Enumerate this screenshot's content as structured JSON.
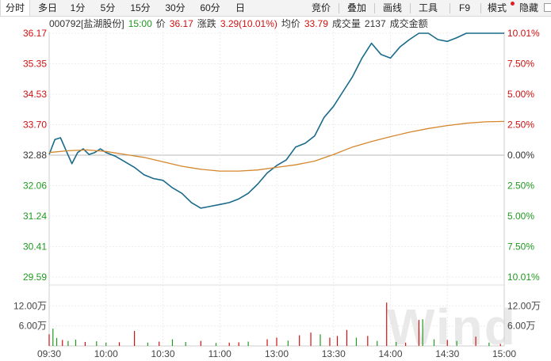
{
  "toolbar": {
    "tabs": [
      "分时",
      "多日",
      "1分",
      "5分",
      "15分",
      "30分",
      "60分",
      "日"
    ],
    "right_items": [
      "竞价",
      "叠加",
      "画线",
      "工具",
      "F9",
      "模式",
      "隐藏"
    ]
  },
  "header": {
    "code_name": "000792[盐湖股份]",
    "time": "15:00",
    "price_label": "价",
    "price": "36.17",
    "change_label": "涨跌",
    "change": "3.29(10.01%)",
    "avg_label": "均价",
    "avg": "33.79",
    "volume_label": "成交量",
    "volume": "2137",
    "amount_label": "成交金额"
  },
  "watermark": "Wind",
  "colors": {
    "up": "#d01010",
    "down": "#1f9a1f",
    "neutral": "#333333",
    "price_line": "#1a6b8a",
    "avg_line": "#d4862c"
  },
  "chart_data": {
    "type": "line",
    "prev_close": 32.88,
    "x_ticks": [
      "09:30",
      "10:00",
      "10:30",
      "11:00",
      "13:00",
      "13:30",
      "14:00",
      "14:30",
      "15:00"
    ],
    "y_left_ticks": [
      "36.17",
      "35.35",
      "34.53",
      "33.70",
      "32.88",
      "32.06",
      "31.24",
      "30.41",
      "29.59"
    ],
    "y_right_ticks": [
      "10.01%",
      "7.50%",
      "5.00%",
      "2.50%",
      "0.00%",
      "2.50%",
      "5.00%",
      "7.50%",
      "10.01%"
    ],
    "ylim": [
      29.59,
      36.17
    ],
    "volume_ticks": [
      "12.00万",
      "6.00万"
    ],
    "volume_ylim": [
      0,
      14
    ],
    "series": [
      {
        "key": "price",
        "x": [
          0,
          3,
          6,
          9,
          12,
          15,
          18,
          21,
          24,
          27,
          30,
          35,
          40,
          45,
          50,
          55,
          60,
          65,
          70,
          75,
          80,
          85,
          90,
          95,
          100,
          105,
          110,
          115,
          120,
          125,
          130,
          135,
          140,
          145,
          150,
          155,
          160,
          165,
          170,
          175,
          180,
          185,
          190,
          195,
          200,
          205,
          210,
          215,
          220,
          225,
          230,
          235,
          240
        ],
        "values": [
          32.9,
          33.3,
          33.35,
          33.0,
          32.65,
          32.95,
          33.05,
          32.9,
          32.95,
          33.05,
          32.95,
          32.85,
          32.7,
          32.55,
          32.35,
          32.25,
          32.2,
          32.0,
          31.85,
          31.6,
          31.45,
          31.5,
          31.55,
          31.6,
          31.7,
          31.85,
          32.1,
          32.4,
          32.6,
          32.75,
          33.1,
          33.2,
          33.4,
          33.9,
          34.2,
          34.6,
          35.0,
          35.5,
          35.9,
          35.6,
          35.5,
          35.8,
          36.0,
          36.17,
          36.17,
          36.0,
          35.95,
          36.05,
          36.17,
          36.17,
          36.17,
          36.17,
          36.17
        ]
      },
      {
        "key": "average",
        "x": [
          0,
          10,
          20,
          30,
          40,
          50,
          60,
          70,
          80,
          90,
          100,
          110,
          120,
          130,
          140,
          150,
          160,
          170,
          180,
          190,
          200,
          210,
          220,
          230,
          240
        ],
        "values": [
          32.95,
          33.0,
          33.02,
          32.98,
          32.9,
          32.82,
          32.7,
          32.58,
          32.5,
          32.45,
          32.45,
          32.48,
          32.55,
          32.62,
          32.72,
          32.9,
          33.1,
          33.25,
          33.38,
          33.5,
          33.6,
          33.68,
          33.74,
          33.78,
          33.79
        ]
      }
    ],
    "volume": [
      {
        "x": 0,
        "v": 3.5,
        "dir": "up"
      },
      {
        "x": 2,
        "v": 5.2,
        "dir": "down"
      },
      {
        "x": 4,
        "v": 2.4,
        "dir": "down"
      },
      {
        "x": 7,
        "v": 1.8,
        "dir": "up"
      },
      {
        "x": 10,
        "v": 1.5,
        "dir": "down"
      },
      {
        "x": 14,
        "v": 1.9,
        "dir": "down"
      },
      {
        "x": 19,
        "v": 1.2,
        "dir": "up"
      },
      {
        "x": 25,
        "v": 1.4,
        "dir": "down"
      },
      {
        "x": 30,
        "v": 1.0,
        "dir": "down"
      },
      {
        "x": 37,
        "v": 1.1,
        "dir": "up"
      },
      {
        "x": 45,
        "v": 4.5,
        "dir": "up"
      },
      {
        "x": 52,
        "v": 1.0,
        "dir": "down"
      },
      {
        "x": 58,
        "v": 1.3,
        "dir": "up"
      },
      {
        "x": 65,
        "v": 2.0,
        "dir": "down"
      },
      {
        "x": 72,
        "v": 1.2,
        "dir": "down"
      },
      {
        "x": 80,
        "v": 1.5,
        "dir": "up"
      },
      {
        "x": 88,
        "v": 0.9,
        "dir": "down"
      },
      {
        "x": 95,
        "v": 1.0,
        "dir": "up"
      },
      {
        "x": 100,
        "v": 1.1,
        "dir": "up"
      },
      {
        "x": 105,
        "v": 1.3,
        "dir": "down"
      },
      {
        "x": 115,
        "v": 2.0,
        "dir": "up"
      },
      {
        "x": 120,
        "v": 2.5,
        "dir": "up"
      },
      {
        "x": 126,
        "v": 1.6,
        "dir": "down"
      },
      {
        "x": 132,
        "v": 3.2,
        "dir": "up"
      },
      {
        "x": 138,
        "v": 4.0,
        "dir": "up"
      },
      {
        "x": 143,
        "v": 3.5,
        "dir": "down"
      },
      {
        "x": 148,
        "v": 2.5,
        "dir": "up"
      },
      {
        "x": 152,
        "v": 3.0,
        "dir": "up"
      },
      {
        "x": 157,
        "v": 4.8,
        "dir": "up"
      },
      {
        "x": 162,
        "v": 2.5,
        "dir": "down"
      },
      {
        "x": 168,
        "v": 3.0,
        "dir": "up"
      },
      {
        "x": 173,
        "v": 1.5,
        "dir": "down"
      },
      {
        "x": 178,
        "v": 13.0,
        "dir": "up"
      },
      {
        "x": 183,
        "v": 1.2,
        "dir": "down"
      },
      {
        "x": 188,
        "v": 1.0,
        "dir": "up"
      },
      {
        "x": 195,
        "v": 7.8,
        "dir": "up"
      },
      {
        "x": 197,
        "v": 8.0,
        "dir": "down"
      },
      {
        "x": 203,
        "v": 2.0,
        "dir": "down"
      },
      {
        "x": 210,
        "v": 1.8,
        "dir": "up"
      },
      {
        "x": 215,
        "v": 1.5,
        "dir": "down"
      },
      {
        "x": 225,
        "v": 2.8,
        "dir": "up"
      },
      {
        "x": 232,
        "v": 1.0,
        "dir": "down"
      },
      {
        "x": 238,
        "v": 0.6,
        "dir": "up"
      }
    ]
  }
}
